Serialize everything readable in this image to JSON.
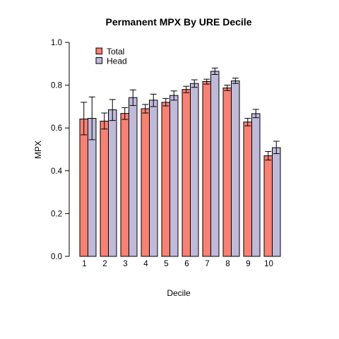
{
  "chart_data": {
    "type": "bar",
    "title": "Permanent MPX By URE Decile",
    "xlabel": "Decile",
    "ylabel": "MPX",
    "ylim": [
      0,
      1
    ],
    "yticks": [
      "0.0",
      "0.2",
      "0.4",
      "0.6",
      "0.8",
      "1.0"
    ],
    "categories": [
      "1",
      "2",
      "3",
      "4",
      "5",
      "6",
      "7",
      "8",
      "9",
      "10"
    ],
    "legend_position": "top-left",
    "grid": false,
    "series": [
      {
        "name": "Total",
        "color": "#fa8072",
        "values": [
          0.642,
          0.632,
          0.668,
          0.69,
          0.72,
          0.78,
          0.817,
          0.787,
          0.628,
          0.47
        ],
        "err_low": [
          0.568,
          0.595,
          0.64,
          0.67,
          0.703,
          0.765,
          0.805,
          0.775,
          0.61,
          0.45
        ],
        "err_high": [
          0.72,
          0.67,
          0.695,
          0.71,
          0.738,
          0.795,
          0.828,
          0.8,
          0.645,
          0.49
        ]
      },
      {
        "name": "Head",
        "color": "#bebada",
        "values": [
          0.645,
          0.685,
          0.742,
          0.73,
          0.752,
          0.808,
          0.865,
          0.82,
          0.667,
          0.508
        ],
        "err_low": [
          0.545,
          0.635,
          0.705,
          0.7,
          0.73,
          0.79,
          0.85,
          0.808,
          0.648,
          0.48
        ],
        "err_high": [
          0.745,
          0.733,
          0.778,
          0.758,
          0.773,
          0.825,
          0.88,
          0.833,
          0.687,
          0.538
        ]
      }
    ]
  }
}
